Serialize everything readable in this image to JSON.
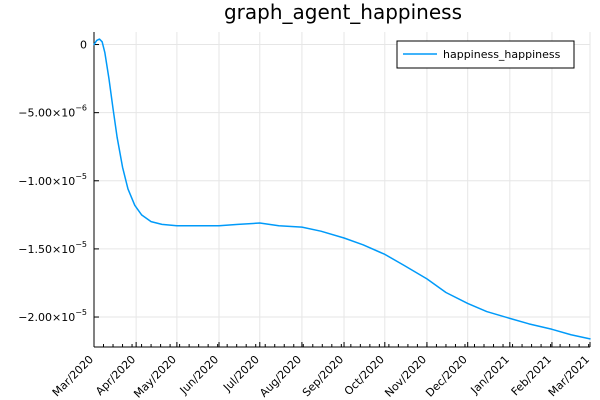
{
  "chart_data": {
    "type": "line",
    "title": "graph_agent_happiness",
    "xlabel": "",
    "ylabel": "",
    "x_ticks": [
      "Mar/2020",
      "Apr/2020",
      "May/2020",
      "Jun/2020",
      "Jul/2020",
      "Aug/2020",
      "Sep/2020",
      "Oct/2020",
      "Nov/2020",
      "Dec/2020",
      "Jan/2021",
      "Feb/2021",
      "Mar/2021"
    ],
    "y_ticks": [
      {
        "value": 0,
        "mantissa": "0",
        "exponent": ""
      },
      {
        "value": -5e-06,
        "mantissa": "−5.00×10",
        "exponent": "−6"
      },
      {
        "value": -1e-05,
        "mantissa": "−1.00×10",
        "exponent": "−5"
      },
      {
        "value": -1.5e-05,
        "mantissa": "−1.50×10",
        "exponent": "−5"
      },
      {
        "value": -2e-05,
        "mantissa": "−2.00×10",
        "exponent": "−5"
      }
    ],
    "xlim": [
      "2020-03-01",
      "2021-03-01"
    ],
    "ylim": [
      -2.22e-05,
      9.2e-07
    ],
    "grid": true,
    "legend_position": "top-right",
    "series": [
      {
        "name": "happiness_happiness",
        "color": "#009af9",
        "points": [
          [
            "2020-03-01",
            0.0
          ],
          [
            "2020-03-03",
            3e-07
          ],
          [
            "2020-03-05",
            4e-07
          ],
          [
            "2020-03-07",
            2e-07
          ],
          [
            "2020-03-09",
            -6e-07
          ],
          [
            "2020-03-12",
            -2.5e-06
          ],
          [
            "2020-03-15",
            -4.7e-06
          ],
          [
            "2020-03-18",
            -6.8e-06
          ],
          [
            "2020-03-22",
            -9e-06
          ],
          [
            "2020-03-26",
            -1.06e-05
          ],
          [
            "2020-03-31",
            -1.18e-05
          ],
          [
            "2020-04-05",
            -1.25e-05
          ],
          [
            "2020-04-12",
            -1.3e-05
          ],
          [
            "2020-04-20",
            -1.32e-05
          ],
          [
            "2020-05-01",
            -1.33e-05
          ],
          [
            "2020-05-15",
            -1.33e-05
          ],
          [
            "2020-06-01",
            -1.33e-05
          ],
          [
            "2020-06-15",
            -1.32e-05
          ],
          [
            "2020-07-01",
            -1.31e-05
          ],
          [
            "2020-07-15",
            -1.33e-05
          ],
          [
            "2020-08-01",
            -1.34e-05
          ],
          [
            "2020-08-15",
            -1.37e-05
          ],
          [
            "2020-09-01",
            -1.42e-05
          ],
          [
            "2020-09-15",
            -1.47e-05
          ],
          [
            "2020-10-01",
            -1.54e-05
          ],
          [
            "2020-10-15",
            -1.62e-05
          ],
          [
            "2020-11-01",
            -1.72e-05
          ],
          [
            "2020-11-15",
            -1.82e-05
          ],
          [
            "2020-12-01",
            -1.9e-05
          ],
          [
            "2020-12-15",
            -1.96e-05
          ],
          [
            "2021-01-01",
            -2.01e-05
          ],
          [
            "2021-01-15",
            -2.05e-05
          ],
          [
            "2021-02-01",
            -2.09e-05
          ],
          [
            "2021-02-15",
            -2.13e-05
          ],
          [
            "2021-03-01",
            -2.16e-05
          ]
        ]
      }
    ]
  }
}
